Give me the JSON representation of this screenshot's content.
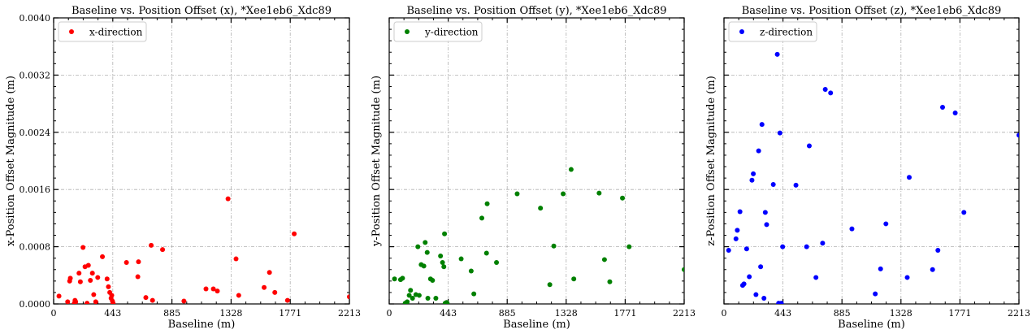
{
  "chart_data": [
    {
      "type": "scatter",
      "title": "Baseline vs. Position Offset (x), *Xee1eb6_Xdc89",
      "xlabel": "Baseline (m)",
      "ylabel": "x-Position Offset Magnitude (m)",
      "xlim": [
        0,
        2213
      ],
      "ylim": [
        0,
        0.004
      ],
      "xticks": [
        "0",
        "443",
        "885",
        "1328",
        "1771",
        "2213"
      ],
      "yticks": [
        "0.0000",
        "0.0008",
        "0.0016",
        "0.0024",
        "0.0032",
        "0.0040"
      ],
      "show_ytick_labels": true,
      "grid": true,
      "legend": "top-left",
      "color": "#ff0000",
      "series": [
        {
          "name": "x-direction",
          "x": [
            40,
            105,
            120,
            125,
            155,
            160,
            165,
            190,
            200,
            220,
            235,
            250,
            260,
            275,
            290,
            300,
            315,
            330,
            365,
            400,
            410,
            420,
            430,
            435,
            440,
            445,
            545,
            630,
            635,
            690,
            730,
            740,
            815,
            975,
            1140,
            1195,
            1225,
            1305,
            1365,
            1385,
            1575,
            1615,
            1655,
            1750,
            1800,
            2213
          ],
          "y": [
            0.00011,
            3e-05,
            0.00032,
            0.00036,
            1e-05,
            5e-05,
            3e-05,
            0.00043,
            0.00031,
            0.00079,
            0.00052,
            1e-05,
            0.00054,
            0.00033,
            0.00043,
            0.00013,
            3e-05,
            0.00037,
            0.00066,
            0.00035,
            0.00024,
            0.00016,
            8e-05,
            0.00012,
            4e-05,
            1e-05,
            0.00058,
            0.00038,
            0.00059,
            9e-05,
            0.00082,
            5e-05,
            0.00076,
            4e-05,
            0.00021,
            0.00021,
            0.00018,
            0.00147,
            0.00063,
            0.00012,
            0.00023,
            0.00044,
            0.00016,
            5e-05,
            0.00098,
            0.0001
          ]
        }
      ]
    },
    {
      "type": "scatter",
      "title": "Baseline vs. Position Offset (y), *Xee1eb6_Xdc89",
      "xlabel": "Baseline (m)",
      "ylabel": "y-Position Offset Magnitude (m)",
      "xlim": [
        0,
        2213
      ],
      "ylim": [
        0,
        0.004
      ],
      "xticks": [
        "0",
        "443",
        "885",
        "1328",
        "1771",
        "2213"
      ],
      "yticks": [
        "0.0000",
        "0.0008",
        "0.0016",
        "0.0024",
        "0.0032",
        "0.0040"
      ],
      "show_ytick_labels": false,
      "grid": true,
      "legend": "top-left",
      "color": "#008000",
      "series": [
        {
          "name": "y-direction",
          "x": [
            40,
            85,
            100,
            120,
            135,
            150,
            160,
            175,
            200,
            215,
            225,
            240,
            260,
            270,
            285,
            290,
            310,
            325,
            350,
            385,
            400,
            410,
            415,
            420,
            430,
            435,
            540,
            615,
            635,
            695,
            730,
            735,
            805,
            960,
            1135,
            1205,
            1235,
            1305,
            1365,
            1385,
            1575,
            1615,
            1655,
            1750,
            1800,
            2213
          ],
          "y": [
            0.00035,
            0.00034,
            0.00036,
            1e-05,
            3e-05,
            0.00012,
            0.00019,
            8e-05,
            0.00013,
            0.0008,
            0.00012,
            0.00055,
            0.00053,
            0.00086,
            0.00072,
            8e-05,
            0.00035,
            0.00033,
            8e-05,
            0.00067,
            0.00058,
            0.00052,
            0.00098,
            1e-05,
            2e-05,
            1e-05,
            0.00063,
            0.00046,
            0.00014,
            0.0012,
            0.00071,
            0.0014,
            0.00058,
            0.00154,
            0.00134,
            0.00027,
            0.00081,
            0.00154,
            0.00188,
            0.00035,
            0.00155,
            0.00062,
            0.00031,
            0.00148,
            0.0008,
            0.00048
          ]
        }
      ]
    },
    {
      "type": "scatter",
      "title": "Baseline vs. Position Offset (z), *Xee1eb6_Xdc89",
      "xlabel": "Baseline (m)",
      "ylabel": "z-Position Offset Magnitude (m)",
      "xlim": [
        0,
        2213
      ],
      "ylim": [
        0,
        0.004
      ],
      "xticks": [
        "0",
        "443",
        "885",
        "1328",
        "1771",
        "2213"
      ],
      "yticks": [
        "0.0000",
        "0.0008",
        "0.0016",
        "0.0024",
        "0.0032",
        "0.0040"
      ],
      "show_ytick_labels": false,
      "grid": true,
      "legend": "top-left",
      "color": "#0000ff",
      "series": [
        {
          "name": "z-direction",
          "x": [
            35,
            90,
            100,
            120,
            140,
            150,
            170,
            190,
            210,
            220,
            240,
            260,
            275,
            285,
            300,
            310,
            320,
            370,
            400,
            410,
            420,
            430,
            440,
            540,
            620,
            640,
            690,
            740,
            760,
            800,
            960,
            1135,
            1175,
            1215,
            1375,
            1390,
            1565,
            1605,
            1640,
            1735,
            1800,
            2213
          ],
          "y": [
            0.00075,
            0.00091,
            0.00103,
            0.00129,
            0.00026,
            0.00028,
            0.00077,
            0.00038,
            0.00173,
            0.00182,
            0.00013,
            0.00214,
            0.00052,
            0.00251,
            8e-05,
            0.00128,
            0.00111,
            0.00167,
            0.00349,
            1e-05,
            0.00239,
            1e-05,
            0.0008,
            0.00166,
            0.0008,
            0.00221,
            0.00037,
            0.00085,
            0.003,
            0.00295,
            0.00105,
            0.00014,
            0.00049,
            0.00112,
            0.00037,
            0.00177,
            0.00048,
            0.00075,
            0.00275,
            0.00267,
            0.00128,
            0.00236
          ]
        }
      ]
    }
  ]
}
